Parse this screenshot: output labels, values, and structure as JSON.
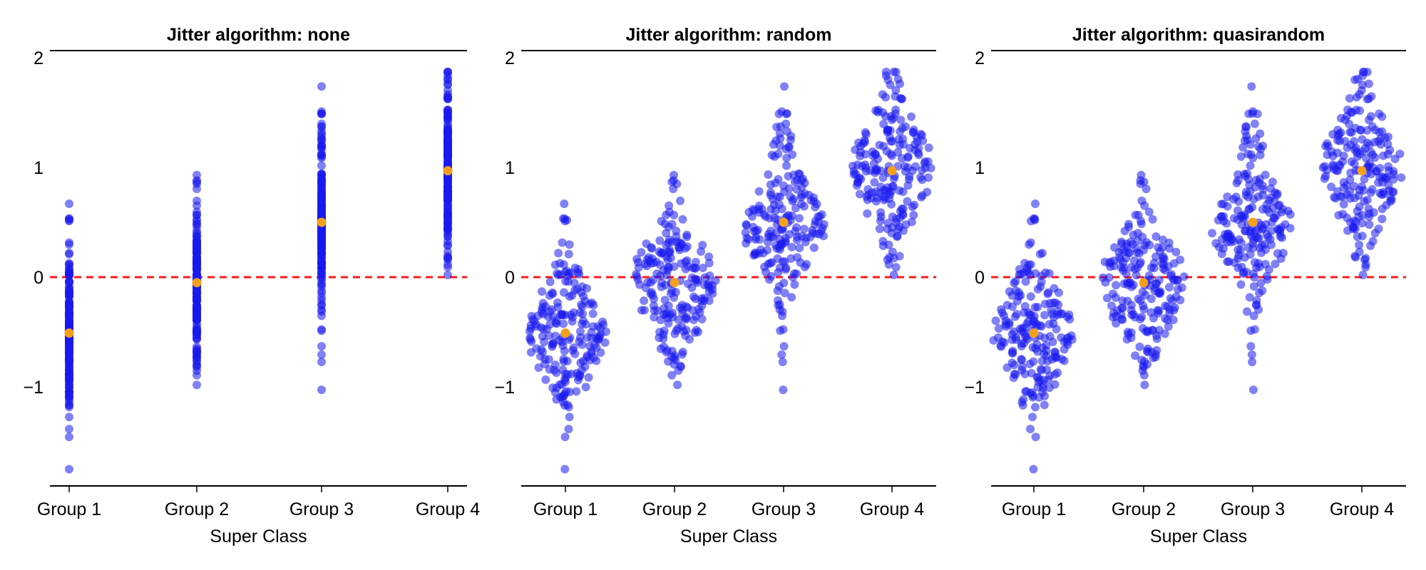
{
  "chart_data": [
    {
      "type": "scatter",
      "title": "Jitter algorithm: none",
      "jitter": "none",
      "xlabel": "Super Class",
      "ylabel": "",
      "categories": [
        "Group 1",
        "Group 2",
        "Group 3",
        "Group 4"
      ],
      "yticks": [
        "2",
        "1",
        "0",
        "−1"
      ],
      "ylim": [
        -1.8,
        2.0
      ],
      "reference_line": {
        "y": 0,
        "style": "dashed",
        "color": "#ff1a1a"
      },
      "group_means": [
        -0.51,
        -0.05,
        0.5,
        0.97
      ]
    },
    {
      "type": "scatter",
      "title": "Jitter algorithm: random",
      "jitter": "random",
      "xlabel": "Super Class",
      "ylabel": "",
      "categories": [
        "Group 1",
        "Group 2",
        "Group 3",
        "Group 4"
      ],
      "yticks": [
        "2",
        "1",
        "0",
        "−1"
      ],
      "ylim": [
        -1.8,
        2.0
      ],
      "reference_line": {
        "y": 0,
        "style": "dashed",
        "color": "#ff1a1a"
      },
      "group_means": [
        -0.51,
        -0.05,
        0.5,
        0.97
      ]
    },
    {
      "type": "scatter",
      "title": "Jitter algorithm: quasirandom",
      "jitter": "quasirandom",
      "xlabel": "Super Class",
      "ylabel": "",
      "categories": [
        "Group 1",
        "Group 2",
        "Group 3",
        "Group 4"
      ],
      "yticks": [
        "2",
        "1",
        "0",
        "−1"
      ],
      "ylim": [
        -1.8,
        2.0
      ],
      "reference_line": {
        "y": 0,
        "style": "dashed",
        "color": "#ff1a1a"
      },
      "group_means": [
        -0.51,
        -0.05,
        0.5,
        0.97
      ]
    }
  ],
  "colors": {
    "points": "#1a1aee",
    "means": "#f5a01a",
    "reference": "#ff1a1a"
  },
  "points_per_group": 200,
  "group_sd": 0.4
}
